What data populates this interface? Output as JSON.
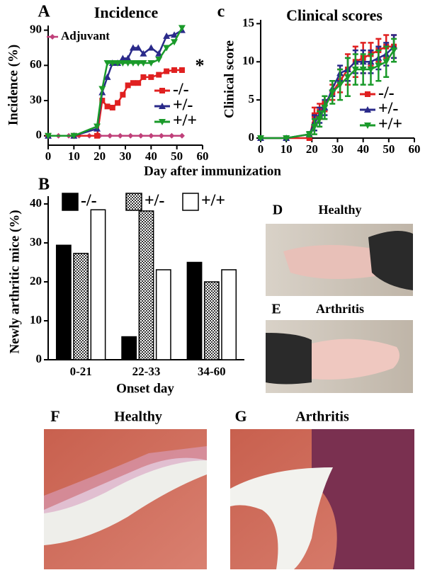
{
  "chart_data": [
    {
      "type": "line",
      "letter": "A",
      "title": "Incidence",
      "ylabel": "Incidence (%)",
      "xlabel": "Day after immunization",
      "annotation": "*",
      "xlim": [
        0,
        60
      ],
      "xticks": [
        0,
        10,
        20,
        30,
        40,
        50,
        60
      ],
      "ylim": [
        -8,
        94
      ],
      "yticks": [
        0,
        30,
        60,
        90
      ],
      "series": [
        {
          "name": "Adjuvant",
          "color": "#c0407a",
          "marker": "diamond",
          "x": [
            0,
            4,
            8,
            12,
            16,
            20,
            24,
            28,
            32,
            36,
            40,
            44,
            48,
            52
          ],
          "values": [
            0,
            0,
            0,
            0,
            0,
            0,
            0,
            0,
            0,
            0,
            0,
            0,
            0,
            0
          ]
        },
        {
          "name": "-/-",
          "color": "#e02020",
          "marker": "square",
          "x": [
            0,
            10,
            19,
            21,
            23,
            25,
            27,
            29,
            31,
            33,
            35,
            37,
            40,
            43,
            46,
            49,
            52
          ],
          "values": [
            0,
            0,
            0,
            30,
            25,
            24,
            28,
            35,
            43,
            45,
            45,
            50,
            50,
            52,
            55,
            56,
            56
          ]
        },
        {
          "name": "+/-",
          "color": "#2a2a8a",
          "marker": "triangle-up",
          "x": [
            0,
            10,
            19,
            21,
            23,
            25,
            27,
            29,
            31,
            33,
            35,
            37,
            40,
            43,
            46,
            49,
            52
          ],
          "values": [
            0,
            0,
            6,
            37,
            50,
            62,
            62,
            66,
            66,
            75,
            75,
            70,
            75,
            70,
            85,
            86,
            90
          ]
        },
        {
          "name": "+/+",
          "color": "#1a9a2a",
          "marker": "triangle-down",
          "x": [
            0,
            10,
            19,
            21,
            23,
            25,
            27,
            29,
            31,
            33,
            35,
            37,
            40,
            43,
            46,
            49,
            52
          ],
          "values": [
            0,
            0,
            8,
            40,
            62,
            62,
            62,
            62,
            62,
            62,
            62,
            62,
            62,
            65,
            75,
            80,
            92
          ]
        }
      ]
    },
    {
      "type": "line",
      "letter": "c",
      "title": "Clinical scores",
      "ylabel": "Clinical score",
      "xlim": [
        0,
        60
      ],
      "xticks": [
        0,
        10,
        20,
        30,
        40,
        50,
        60
      ],
      "ylim": [
        0,
        15.5
      ],
      "yticks": [
        0,
        5,
        10,
        15
      ],
      "series": [
        {
          "name": "-/-",
          "color": "#e02020",
          "marker": "square",
          "x": [
            0,
            10,
            19,
            21,
            23,
            25,
            28,
            31,
            34,
            37,
            40,
            43,
            46,
            49,
            52
          ],
          "values": [
            0,
            0,
            0,
            3,
            3.5,
            4.5,
            6,
            7.5,
            9,
            10,
            10.5,
            11,
            11.5,
            12,
            12
          ],
          "errors": [
            0,
            0,
            0,
            1,
            1,
            1,
            1,
            1.5,
            2,
            2,
            2,
            1.5,
            1.5,
            1.5,
            1.5
          ]
        },
        {
          "name": "+/-",
          "color": "#2a2a8a",
          "marker": "triangle-up",
          "x": [
            0,
            10,
            19,
            21,
            23,
            25,
            28,
            31,
            34,
            37,
            40,
            43,
            46,
            49,
            52
          ],
          "values": [
            0,
            0,
            0.5,
            2,
            3,
            4,
            6.5,
            8.5,
            9,
            10,
            10,
            10,
            10.5,
            11,
            12
          ],
          "errors": [
            0,
            0,
            0.3,
            1,
            1,
            1,
            1,
            1,
            1.5,
            1.5,
            1.5,
            1.5,
            1.5,
            1.5,
            1.5
          ]
        },
        {
          "name": "+/+",
          "color": "#1a9a2a",
          "marker": "triangle-down",
          "x": [
            0,
            10,
            19,
            21,
            23,
            25,
            28,
            31,
            34,
            37,
            40,
            43,
            46,
            49,
            52
          ],
          "values": [
            0,
            0,
            0.5,
            1.5,
            2.5,
            4,
            6,
            7,
            8,
            9,
            9,
            9,
            9.5,
            10,
            11.5
          ],
          "errors": [
            0,
            0,
            0.3,
            1,
            1,
            1.5,
            1.5,
            2,
            2.5,
            2,
            2,
            2,
            2,
            2,
            1.5
          ]
        }
      ]
    },
    {
      "type": "bar",
      "letter": "B",
      "ylabel": "Newly arthritic mice (%)",
      "xlabel": "Onset day",
      "categories": [
        "0-21",
        "22-33",
        "34-60"
      ],
      "ylim": [
        0,
        42
      ],
      "yticks": [
        0,
        10,
        20,
        30,
        40
      ],
      "series": [
        {
          "name": "-/-",
          "color": "#000000",
          "values": [
            29.4,
            5.9,
            25
          ]
        },
        {
          "name": "+/-",
          "color": "#808080",
          "pattern": "checker",
          "values": [
            27.3,
            38.2,
            20
          ]
        },
        {
          "name": "+/+",
          "color": "#ffffff",
          "values": [
            38.5,
            23.1,
            23.1
          ]
        }
      ]
    }
  ],
  "images": [
    {
      "letter": "D",
      "caption": "Healthy"
    },
    {
      "letter": "E",
      "caption": "Arthritis"
    },
    {
      "letter": "F",
      "caption": "Healthy"
    },
    {
      "letter": "G",
      "caption": "Arthritis"
    }
  ]
}
